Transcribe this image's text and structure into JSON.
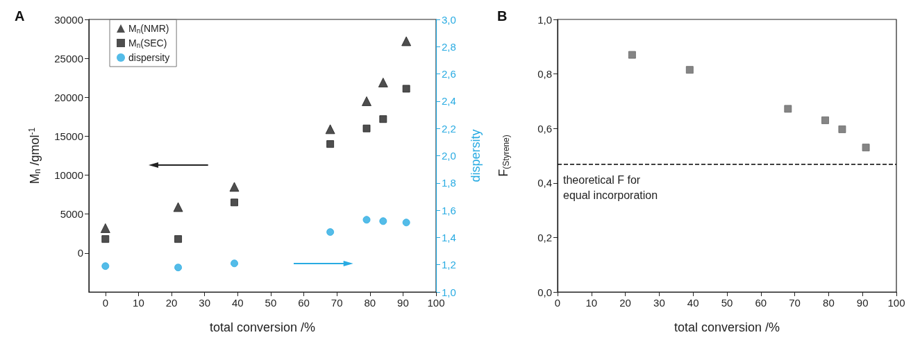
{
  "chart_data": [
    {
      "type": "scatter",
      "title": "A",
      "xlabel": "total conversion /%",
      "ylabel": "M$_{n}$ /gmol$^{-1}$",
      "y2label": "dispersity",
      "x": [
        0,
        22,
        39,
        68,
        79,
        84,
        91
      ],
      "xlim": [
        -5,
        100
      ],
      "xticks": [
        0,
        10,
        20,
        30,
        40,
        50,
        60,
        70,
        80,
        90,
        100
      ],
      "ylim": [
        -5000,
        30000
      ],
      "yticks": [
        0,
        5000,
        10000,
        15000,
        20000,
        25000,
        30000
      ],
      "y2lim": [
        1.0,
        3.0
      ],
      "y2ticks": [
        {
          "value": 1.0,
          "label": "1,0"
        },
        {
          "value": 1.2,
          "label": "1,2"
        },
        {
          "value": 1.4,
          "label": "1,4"
        },
        {
          "value": 1.6,
          "label": "1,6"
        },
        {
          "value": 1.8,
          "label": "1,8"
        },
        {
          "value": 2.0,
          "label": "2,0"
        },
        {
          "value": 2.2,
          "label": "2,2"
        },
        {
          "value": 2.4,
          "label": "2,4"
        },
        {
          "value": 2.6,
          "label": "2,6"
        },
        {
          "value": 2.8,
          "label": "2,8"
        },
        {
          "value": 3.0,
          "label": "3,0"
        }
      ],
      "legend": "top left",
      "grid": false,
      "series": [
        {
          "name": "M$_{n}$(NMR)",
          "color": "#222222",
          "marker": "triangle",
          "values": [
            3200,
            5900,
            8500,
            15900,
            19500,
            21900,
            27200
          ]
        },
        {
          "name": "M$_{n}$(SEC)",
          "color": "#222222",
          "marker": "square",
          "values": [
            1800,
            1800,
            6500,
            14000,
            16000,
            17200,
            21100
          ]
        },
        {
          "name": "dispersity",
          "color": "#29abe2",
          "marker": "circle",
          "axis": "y2",
          "values": [
            1.19,
            1.18,
            1.21,
            1.44,
            1.53,
            1.52,
            1.51
          ]
        }
      ]
    },
    {
      "type": "scatter",
      "title": "B",
      "xlabel": "total conversion /%",
      "ylabel": "F$_{(Styrene)}$",
      "x": [
        22,
        39,
        68,
        79,
        84,
        91
      ],
      "xlim": [
        0,
        100
      ],
      "xticks": [
        0,
        10,
        20,
        30,
        40,
        50,
        60,
        70,
        80,
        90,
        100
      ],
      "ylim": [
        0,
        1.0
      ],
      "yticks": [
        {
          "value": 0,
          "label": "0,0"
        },
        {
          "value": 0.2,
          "label": "0,2"
        },
        {
          "value": 0.4,
          "label": "0,4"
        },
        {
          "value": 0.6,
          "label": "0,6"
        },
        {
          "value": 0.8,
          "label": "0,8"
        },
        {
          "value": 1.0,
          "label": "1,0"
        }
      ],
      "legend": false,
      "grid": false,
      "marker": "square",
      "series": [
        {
          "color": "#666666",
          "values": [
            0.87,
            0.815,
            0.672,
            0.63,
            0.597,
            0.53
          ]
        }
      ],
      "ref_lines": [
        {
          "axis": "y",
          "value": 0.473,
          "label": "theoretical F for\nequal incorporation",
          "color": "#000000",
          "line_style": "dashed"
        }
      ]
    }
  ]
}
